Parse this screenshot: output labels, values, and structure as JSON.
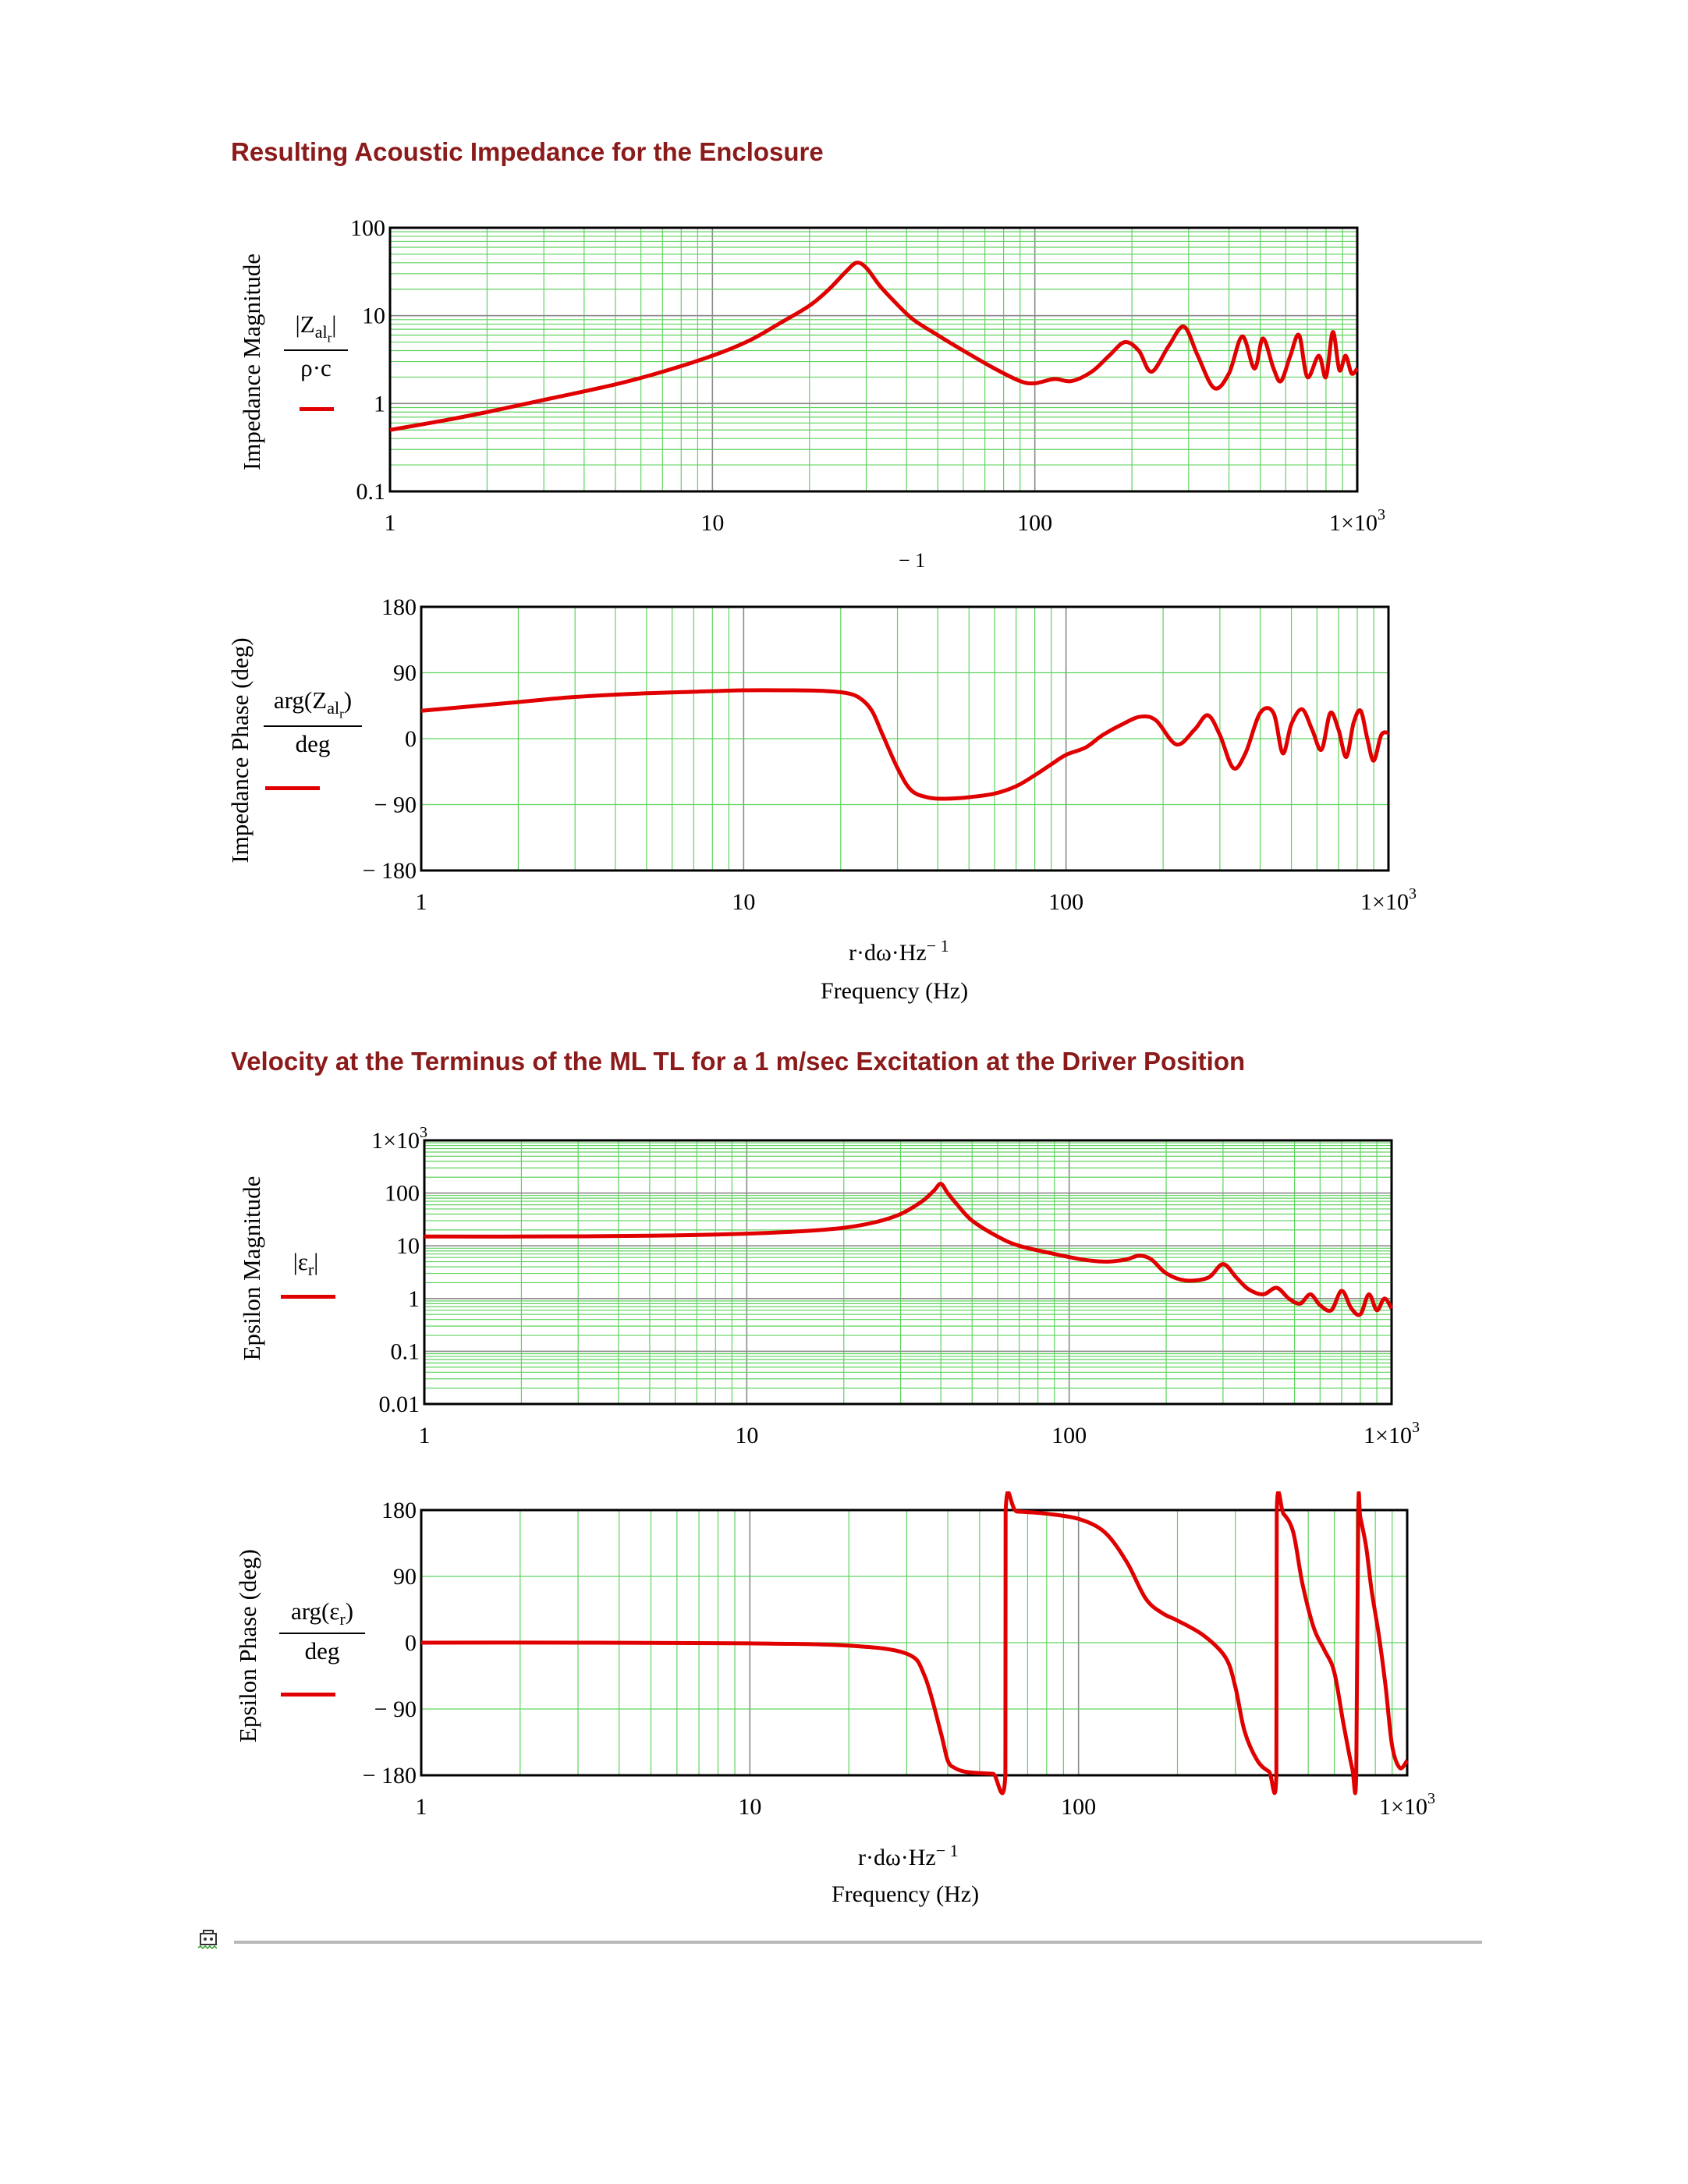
{
  "sections": {
    "title1": "Resulting Acoustic Impedance for the Enclosure",
    "title2": "Velocity at the Terminus of the ML TL for a 1 m/sec Excitation at the Driver Position"
  },
  "chart1": {
    "ylabel": "Impedance Magnitude",
    "frac_num": "|Z",
    "frac_sub": "al",
    "frac_subsub": "r",
    "frac_num_end": "|",
    "frac_den": "ρ·c",
    "yticks": [
      "100",
      "10",
      "1",
      "0.1"
    ],
    "xticks": [
      "1",
      "10",
      "100",
      "1×10"
    ],
    "xtick_exp": "3",
    "xlabel_fragment": "− 1"
  },
  "chart2": {
    "ylabel": "Impedance Phase (deg)",
    "frac_num": "arg(Z",
    "frac_sub": "al",
    "frac_subsub": "r",
    "frac_num_end": ")",
    "frac_den": "deg",
    "yticks": [
      "180",
      "90",
      "0",
      "− 90",
      "− 180"
    ],
    "xticks": [
      "1",
      "10",
      "100",
      "1×10"
    ],
    "xtick_exp": "3",
    "xlabel_main": "r·dω·Hz",
    "xlabel_exp": "− 1",
    "xname": "Frequency (Hz)"
  },
  "chart3": {
    "ylabel": "Epsilon Magnitude",
    "frac_num": "|ε",
    "frac_sub": "r",
    "frac_num_end": "|",
    "yticks": [
      "1×10",
      "100",
      "10",
      "1",
      "0.1",
      "0.01"
    ],
    "ytick_exp": "3",
    "xticks": [
      "1",
      "10",
      "100",
      "1×10"
    ],
    "xtick_exp": "3"
  },
  "chart4": {
    "ylabel": "Epsilon Phase (deg)",
    "frac_num": "arg(ε",
    "frac_sub": "r",
    "frac_num_end": ")",
    "frac_den": "deg",
    "yticks": [
      "180",
      "90",
      "0",
      "− 90",
      "− 180"
    ],
    "xticks": [
      "1",
      "10",
      "100",
      "1×10"
    ],
    "xtick_exp": "3",
    "xlabel_main": "r·dω·Hz",
    "xlabel_exp": "− 1",
    "xname": "Frequency (Hz)"
  },
  "colors": {
    "trace": "#e00000",
    "minor_grid": "#5fd35f",
    "major_grid": "#8a8a8a",
    "title": "#8b1a1a"
  },
  "chart_data": [
    {
      "type": "line",
      "xscale": "log",
      "yscale": "log",
      "xlim": [
        1,
        1000
      ],
      "ylim": [
        0.1,
        100
      ],
      "grid": true,
      "series": [
        {
          "x": [
            1,
            1.5,
            2,
            3,
            5,
            7,
            10,
            13,
            16,
            20,
            23,
            26,
            28,
            30,
            33,
            37,
            42,
            50,
            60,
            75,
            90,
            100,
            115,
            130,
            150,
            170,
            190,
            210,
            230,
            260,
            290,
            320,
            360,
            400,
            440,
            480,
            510,
            550,
            580,
            620,
            660,
            700,
            760,
            800,
            840,
            880,
            920,
            960,
            1000
          ],
          "y": [
            0.5,
            0.65,
            0.8,
            1.1,
            1.65,
            2.3,
            3.5,
            5.2,
            8,
            13,
            20,
            32,
            40,
            35,
            22,
            14,
            9,
            6,
            4,
            2.5,
            1.8,
            1.7,
            1.9,
            1.8,
            2.3,
            3.5,
            5.0,
            4.0,
            2.3,
            4.5,
            7.5,
            3.5,
            1.5,
            2.2,
            5.8,
            2.5,
            5.5,
            2.5,
            1.8,
            3.5,
            6.0,
            2.0,
            3.5,
            2.0,
            6.5,
            2.4,
            3.5,
            2.2,
            2.5
          ]
        }
      ]
    },
    {
      "type": "line",
      "xscale": "log",
      "yscale": "linear",
      "xlim": [
        1,
        1000
      ],
      "ylim": [
        -180,
        180
      ],
      "grid": true,
      "series": [
        {
          "x": [
            1,
            1.5,
            2,
            3,
            5,
            7,
            10,
            14,
            18,
            21,
            23,
            25,
            27,
            30,
            33,
            37,
            42,
            50,
            60,
            70,
            80,
            90,
            100,
            115,
            130,
            150,
            170,
            190,
            220,
            250,
            275,
            300,
            330,
            360,
            400,
            440,
            470,
            500,
            540,
            580,
            620,
            660,
            700,
            740,
            780,
            820,
            860,
            900,
            950,
            1000
          ],
          "y": [
            38,
            45,
            50,
            57,
            62,
            64,
            66,
            66,
            65,
            62,
            55,
            38,
            5,
            -40,
            -70,
            -80,
            -82,
            -80,
            -75,
            -65,
            -50,
            -35,
            -22,
            -12,
            5,
            20,
            30,
            25,
            -8,
            12,
            32,
            5,
            -40,
            -20,
            35,
            35,
            -20,
            20,
            40,
            12,
            -15,
            35,
            12,
            -25,
            22,
            38,
            0,
            -30,
            5,
            8
          ]
        }
      ]
    },
    {
      "type": "line",
      "xscale": "log",
      "yscale": "log",
      "xlim": [
        1,
        1000
      ],
      "ylim": [
        0.01,
        1000
      ],
      "grid": true,
      "series": [
        {
          "x": [
            1,
            2,
            5,
            10,
            15,
            20,
            25,
            30,
            35,
            38,
            40,
            42,
            45,
            50,
            60,
            70,
            90,
            110,
            130,
            150,
            165,
            180,
            200,
            230,
            270,
            300,
            330,
            360,
            400,
            440,
            480,
            520,
            560,
            600,
            650,
            700,
            750,
            800,
            850,
            900,
            950,
            1000
          ],
          "y": [
            15,
            15,
            15.5,
            17,
            19,
            22,
            28,
            40,
            70,
            110,
            150,
            100,
            60,
            30,
            15,
            10,
            7,
            5.5,
            5,
            5.5,
            6.5,
            5.5,
            3,
            2.2,
            2.5,
            4.5,
            2.5,
            1.5,
            1.2,
            1.6,
            1.0,
            0.8,
            1.2,
            0.75,
            0.6,
            1.4,
            0.65,
            0.5,
            1.2,
            0.6,
            1.0,
            0.65
          ]
        }
      ]
    },
    {
      "type": "line",
      "xscale": "log",
      "yscale": "linear",
      "xlim": [
        1,
        1000
      ],
      "ylim": [
        -180,
        180
      ],
      "grid": true,
      "series": [
        {
          "x": [
            1,
            3,
            10,
            20,
            30,
            34,
            38,
            40,
            42,
            45,
            50,
            55,
            59.9,
            60,
            65,
            80,
            100,
            120,
            140,
            160,
            180,
            200,
            240,
            280,
            300,
            320,
            350,
            380,
            400.0,
            401,
            420,
            450,
            480,
            520,
            560,
            600,
            640,
            680,
            700,
            710,
            720,
            750,
            780,
            820,
            860,
            900,
            950,
            1000
          ],
          "y": [
            0,
            0,
            -1,
            -4,
            -15,
            -45,
            -120,
            -160,
            -170,
            -175,
            -177,
            -178,
            -178,
            178,
            178,
            175,
            168,
            150,
            110,
            60,
            40,
            30,
            10,
            -20,
            -60,
            -120,
            -160,
            -175,
            -178,
            178,
            175,
            150,
            80,
            20,
            -10,
            -40,
            -110,
            -170,
            -178,
            178,
            170,
            130,
            70,
            10,
            -60,
            -140,
            -170,
            -160
          ]
        }
      ]
    }
  ]
}
